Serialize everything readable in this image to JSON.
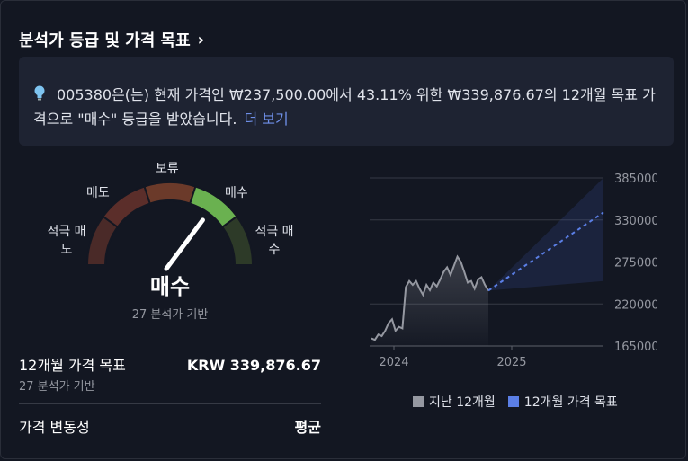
{
  "header": {
    "title": "분석가 등급 및 가격 목표",
    "chevron": "›"
  },
  "info": {
    "text": "005380은(는) 현재 가격인 ₩237,500.00에서 43.11% 위한 ₩339,876.67의 12개월 목표 가격으로 \"매수\" 등급을 받았습니다.",
    "link": "더 보기",
    "icon": "lightbulb-icon"
  },
  "gauge": {
    "labels": {
      "strong_sell": "적극 매\n도",
      "sell": "매도",
      "neutral": "보류",
      "buy": "매수",
      "strong_buy": "적극 매\n수"
    },
    "rating": "매수",
    "basis": "27 분석가 기반",
    "needle_fraction": 0.7,
    "colors": {
      "strong_sell": "#4a2a28",
      "sell": "#5b2e2a",
      "neutral": "#6b3a2a",
      "buy": "#6ab150",
      "strong_buy": "#2d3a28"
    }
  },
  "target": {
    "label": "12개월 가격 목표",
    "value": "KRW 339,876.67",
    "basis": "27 분석가 기반"
  },
  "volatility": {
    "label": "가격 변동성",
    "value": "평균"
  },
  "chart_data": {
    "type": "line",
    "x_ticks": [
      "2024",
      "2025"
    ],
    "y_ticks": [
      385000,
      330000,
      275000,
      220000,
      165000
    ],
    "ylim": [
      165000,
      385000
    ],
    "series": [
      {
        "name": "지난 12개월",
        "color": "#9598a1",
        "values": [
          175000,
          173000,
          180000,
          178000,
          185000,
          195000,
          200000,
          185000,
          190000,
          188000,
          242000,
          250000,
          245000,
          250000,
          240000,
          232000,
          245000,
          238000,
          248000,
          243000,
          252000,
          262000,
          268000,
          258000,
          270000,
          282000,
          275000,
          262000,
          248000,
          250000,
          240000,
          252000,
          255000,
          245000,
          237500
        ]
      },
      {
        "name": "12개월 가격 목표",
        "color": "#5b7fe6",
        "values": [
          237500,
          339876.67
        ],
        "high": 385000,
        "low": 250000
      }
    ]
  },
  "legend": {
    "past": {
      "label": "지난 12개월",
      "color": "#9598a1"
    },
    "target": {
      "label": "12개월 가격 목표",
      "color": "#5b7fe6"
    }
  }
}
